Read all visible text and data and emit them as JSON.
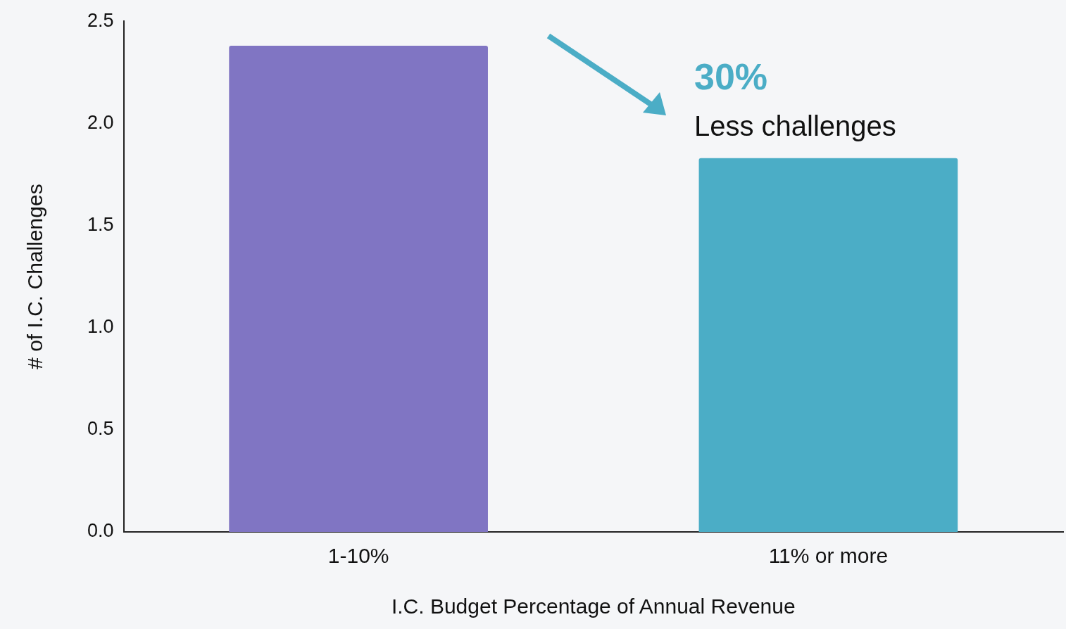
{
  "chart_data": {
    "type": "bar",
    "xlabel": "I.C. Budget Percentage of Annual Revenue",
    "ylabel": "# of I.C. Challenges",
    "categories": [
      "1-10%",
      "11% or more"
    ],
    "values": [
      2.38,
      1.83
    ],
    "colors": [
      "#8075c3",
      "#4badc6"
    ],
    "ylim": [
      0,
      2.5
    ],
    "yticks": [
      {
        "value": 0,
        "label": "0.0"
      },
      {
        "value": 0.5,
        "label": "0.5"
      },
      {
        "value": 1,
        "label": "1.0"
      },
      {
        "value": 1.5,
        "label": "1.5"
      },
      {
        "value": 2,
        "label": "2.0"
      },
      {
        "value": 2.5,
        "label": "2.5"
      }
    ],
    "grid": false,
    "legend": false,
    "annotations": [
      "30%",
      "Less challenges"
    ]
  }
}
